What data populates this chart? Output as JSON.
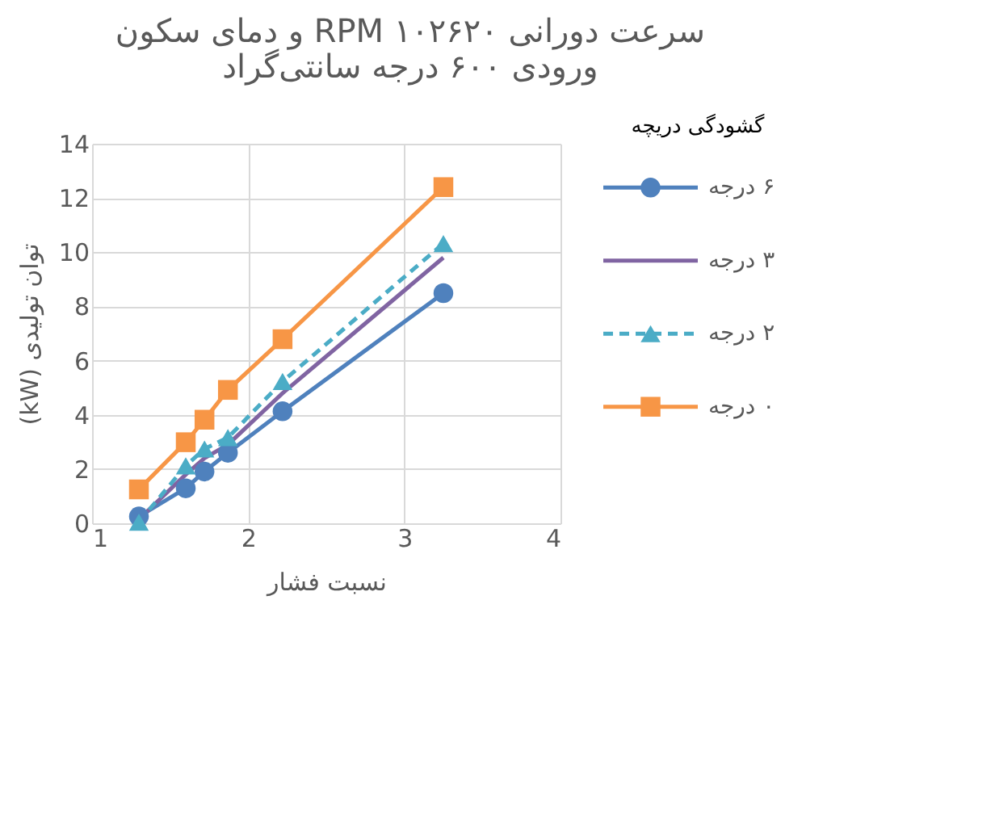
{
  "chart_data": {
    "type": "line",
    "title": [
      "سرعت دورانی ۱۰۲۶۲۰ RPM و دمای سکون",
      "ورودی ۶۰۰ درجه سانتی‌گراد"
    ],
    "xlabel": "نسبت فشار",
    "ylabel": "توان تولیدی (kW)",
    "legend_title": "گشودگی دریچه",
    "legend": "right",
    "grid": true,
    "x": [
      1.3,
      1.6,
      1.72,
      1.87,
      2.22,
      3.25
    ],
    "xlim": [
      1,
      4
    ],
    "xticks": [
      1,
      2,
      3,
      4
    ],
    "ylim": [
      0,
      14
    ],
    "yticks": [
      0,
      2,
      4,
      6,
      8,
      10,
      12,
      14
    ],
    "series": [
      {
        "name": "۶ درجه",
        "color": "#4f81bd",
        "marker": "circle",
        "line_style": "solid",
        "values": [
          0.25,
          1.29,
          1.91,
          2.6,
          4.13,
          8.49
        ]
      },
      {
        "name": "۳ درجه",
        "color": "#8064a2",
        "marker": "none",
        "line_style": "solid",
        "values": [
          0.15,
          1.8,
          2.4,
          2.9,
          4.8,
          9.8
        ]
      },
      {
        "name": "۲ درجه",
        "color": "#4bacc6",
        "marker": "triangle",
        "line_style": "dashed",
        "values": [
          0.04,
          2.12,
          2.74,
          3.16,
          5.23,
          10.32
        ]
      },
      {
        "name": "۰ درجه",
        "color": "#f79646",
        "marker": "square",
        "line_style": "solid",
        "values": [
          1.25,
          2.99,
          3.82,
          4.92,
          6.79,
          12.4
        ]
      }
    ]
  }
}
